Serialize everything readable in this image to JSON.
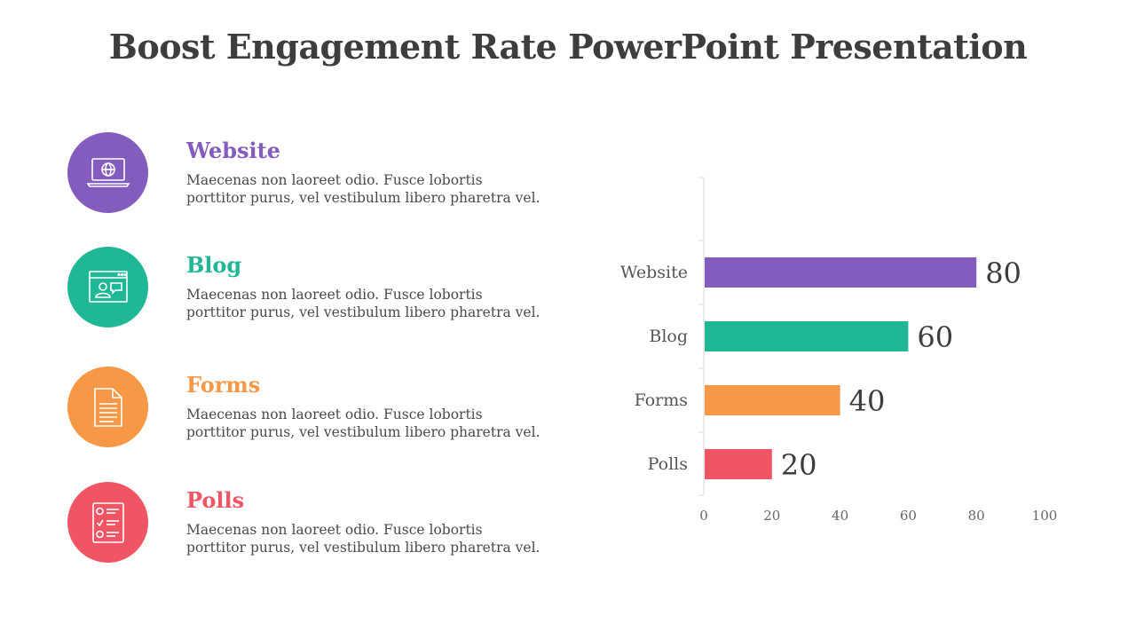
{
  "title": "Boost Engagement Rate PowerPoint Presentation",
  "items": [
    {
      "heading": "Website",
      "text_line1": "Maecenas non laoreet odio. Fusce lobortis",
      "text_line2": "porttitor purus, vel vestibulum libero pharetra vel.",
      "color": "#835CBE",
      "icon": "laptop-globe-icon"
    },
    {
      "heading": "Blog",
      "text_line1": "Maecenas non laoreet odio. Fusce lobortis",
      "text_line2": "porttitor purus, vel vestibulum libero pharetra vel.",
      "color": "#1FB795",
      "icon": "browser-chat-icon"
    },
    {
      "heading": "Forms",
      "text_line1": "Maecenas non laoreet odio. Fusce lobortis",
      "text_line2": "porttitor purus, vel vestibulum libero pharetra vel.",
      "color": "#F79846",
      "icon": "document-icon"
    },
    {
      "heading": "Polls",
      "text_line1": "Maecenas non laoreet odio. Fusce lobortis",
      "text_line2": "porttitor purus, vel vestibulum libero pharetra vel.",
      "color": "#F05565",
      "icon": "checklist-icon"
    }
  ],
  "chart_data": {
    "type": "bar",
    "orientation": "horizontal",
    "categories": [
      "Website",
      "Blog",
      "Forms",
      "Polls"
    ],
    "values": [
      80,
      60,
      40,
      20
    ],
    "colors": [
      "#835CBE",
      "#1FB795",
      "#F79846",
      "#F05565"
    ],
    "xlim": [
      0,
      100
    ],
    "xticks": [
      0,
      20,
      40,
      60,
      80,
      100
    ],
    "grid": false,
    "legend": "none",
    "data_labels": true
  }
}
